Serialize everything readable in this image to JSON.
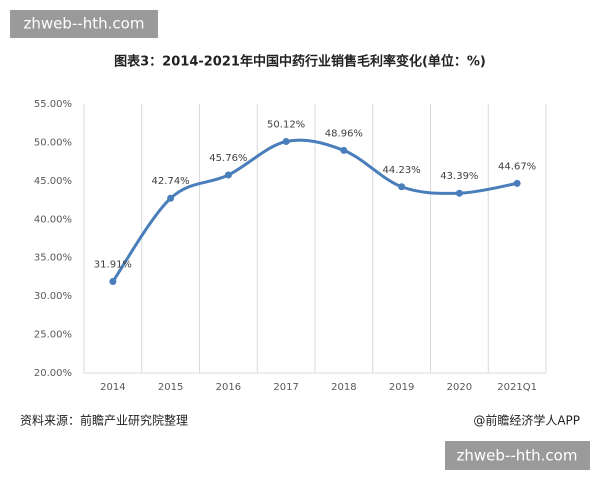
{
  "watermarks": [
    "zhweb--hth.com",
    "zhweb--hth.com"
  ],
  "chart_data": {
    "type": "line",
    "title": "图表3：2014-2021年中国中药行业销售毛利率变化(单位：%)",
    "source": "资料来源：前瞻产业研究院整理",
    "credit": "@前瞻经济学人APP",
    "categories": [
      "2014",
      "2015",
      "2016",
      "2017",
      "2018",
      "2019",
      "2020",
      "2021Q1"
    ],
    "series": [
      {
        "color": "#4a7ebb",
        "values": [
          31.91,
          42.74,
          45.76,
          50.12,
          48.96,
          44.23,
          43.39,
          44.67
        ],
        "value_labels": [
          "31.91%",
          "42.74%",
          "45.76%",
          "50.12%",
          "48.96%",
          "44.23%",
          "43.39%",
          "44.67%"
        ]
      }
    ],
    "ylim": [
      20,
      55
    ],
    "yticks": [
      {
        "value": 20,
        "label": "20.00%"
      },
      {
        "value": 25,
        "label": "25.00%"
      },
      {
        "value": 30,
        "label": "30.00%"
      },
      {
        "value": 35,
        "label": "35.00%"
      },
      {
        "value": 40,
        "label": "40.00%"
      },
      {
        "value": 45,
        "label": "45.00%"
      },
      {
        "value": 50,
        "label": "50.00%"
      },
      {
        "value": 55,
        "label": "55.00%"
      }
    ],
    "grid": true
  }
}
